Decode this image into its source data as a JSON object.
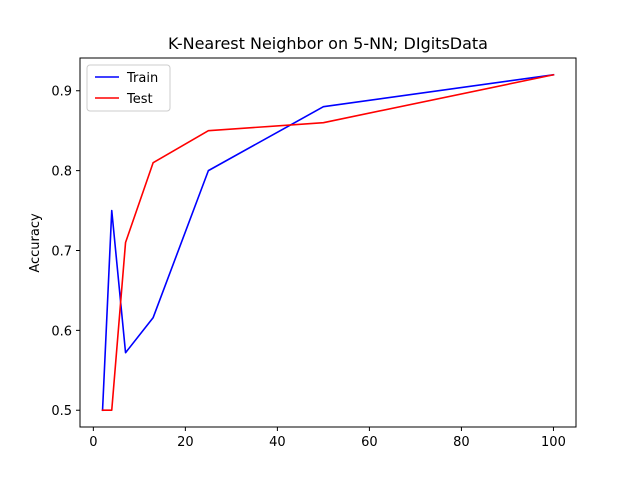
{
  "chart_data": {
    "type": "line",
    "title": "K-Nearest Neighbor on 5-NN; DIgitsData",
    "xlabel": "",
    "ylabel": "Accuracy",
    "xlim": [
      -2.9,
      104.9
    ],
    "ylim": [
      0.479,
      0.941
    ],
    "xticks": [
      0,
      20,
      40,
      60,
      80,
      100
    ],
    "yticks": [
      0.5,
      0.6,
      0.7,
      0.8,
      0.9
    ],
    "grid": false,
    "legend": "upper-left",
    "series": [
      {
        "name": "Train",
        "color": "#0000ff",
        "x": [
          2,
          4,
          7,
          13,
          25,
          50,
          100
        ],
        "y": [
          0.5,
          0.75,
          0.572,
          0.616,
          0.8,
          0.88,
          0.92
        ]
      },
      {
        "name": "Test",
        "color": "#ff0000",
        "x": [
          2,
          4,
          7,
          13,
          25,
          50,
          100
        ],
        "y": [
          0.5,
          0.5,
          0.71,
          0.81,
          0.85,
          0.86,
          0.92
        ]
      }
    ]
  }
}
